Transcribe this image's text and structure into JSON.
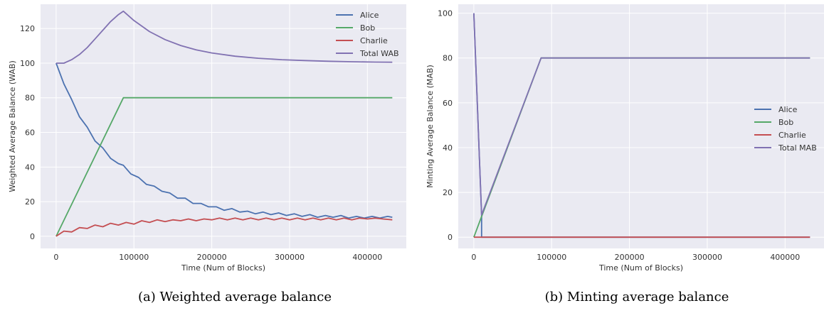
{
  "chart_data": [
    {
      "type": "line",
      "caption": "(a) Weighted average balance",
      "xlabel": "Time (Num of Blocks)",
      "ylabel": "Weighted Average Balance (WAB)",
      "xlim": [
        -20000,
        450000
      ],
      "ylim": [
        -7,
        134
      ],
      "xticks": [
        0,
        100000,
        200000,
        300000,
        400000
      ],
      "xtick_labels": [
        "0",
        "100000",
        "200000",
        "300000",
        "400000"
      ],
      "yticks": [
        0,
        20,
        40,
        60,
        80,
        100,
        120
      ],
      "ytick_labels": [
        "0",
        "20",
        "40",
        "60",
        "80",
        "100",
        "120"
      ],
      "grid": true,
      "legend": "top-right",
      "series": [
        {
          "name": "Alice",
          "color": "#4c72b0",
          "x": [
            0,
            10000,
            20000,
            30000,
            40000,
            50000,
            60000,
            70000,
            80000,
            86400,
            96000,
            106000,
            116000,
            126000,
            136000,
            146000,
            156000,
            166000,
            176000,
            186000,
            196000,
            206000,
            216000,
            226000,
            236000,
            246000,
            256000,
            266000,
            276000,
            286000,
            296000,
            306000,
            316000,
            326000,
            336000,
            346000,
            356000,
            366000,
            376000,
            386000,
            396000,
            406000,
            416000,
            426000,
            432000
          ],
          "y": [
            100,
            88,
            79,
            69,
            63,
            55,
            51,
            45,
            42,
            41,
            36,
            34,
            30,
            29,
            26,
            25,
            22,
            22,
            19,
            19,
            17,
            17,
            15,
            16,
            14,
            14.5,
            13,
            14,
            12.5,
            13.5,
            12,
            13,
            11.5,
            12.5,
            11,
            12,
            11,
            12,
            10.5,
            11.5,
            10.5,
            11.5,
            10.5,
            11.5,
            11
          ]
        },
        {
          "name": "Bob",
          "color": "#55a868",
          "x": [
            0,
            86400,
            432000
          ],
          "y": [
            0,
            80,
            80
          ]
        },
        {
          "name": "Charlie",
          "color": "#c44e52",
          "x": [
            0,
            10000,
            20000,
            30000,
            40000,
            50000,
            60000,
            70000,
            80000,
            90000,
            100000,
            110000,
            120000,
            130000,
            140000,
            150000,
            160000,
            170000,
            180000,
            190000,
            200000,
            210000,
            220000,
            230000,
            240000,
            250000,
            260000,
            270000,
            280000,
            290000,
            300000,
            310000,
            320000,
            330000,
            340000,
            350000,
            360000,
            370000,
            380000,
            390000,
            400000,
            410000,
            420000,
            432000
          ],
          "y": [
            0,
            3,
            2.5,
            5,
            4.5,
            6.5,
            5.5,
            7.5,
            6.5,
            8,
            7,
            9,
            8,
            9.5,
            8.5,
            9.5,
            9,
            10,
            9,
            10,
            9.5,
            10.5,
            9.5,
            10.5,
            9.5,
            10.5,
            9.5,
            10.5,
            9.5,
            10.5,
            9.5,
            10.5,
            9.5,
            10.5,
            9.5,
            10.5,
            9.5,
            10.5,
            9.5,
            10.5,
            10,
            10.5,
            10,
            9.5
          ]
        },
        {
          "name": "Total WAB",
          "color": "#8172b2",
          "x": [
            0,
            10000,
            20000,
            30000,
            40000,
            50000,
            60000,
            70000,
            80000,
            86400,
            100000,
            120000,
            140000,
            160000,
            180000,
            200000,
            230000,
            260000,
            290000,
            320000,
            350000,
            380000,
            410000,
            432000
          ],
          "y": [
            100,
            100,
            102,
            105,
            109,
            114,
            119,
            124,
            128,
            130,
            124.6,
            118.2,
            113.6,
            110.2,
            107.7,
            105.9,
            104.0,
            102.8,
            102.0,
            101.5,
            101.1,
            100.8,
            100.6,
            100.5
          ]
        }
      ]
    },
    {
      "type": "line",
      "caption": "(b) Minting average balance",
      "xlabel": "Time (Num of Blocks)",
      "ylabel": "Minting Average Balance (MAB)",
      "xlim": [
        -20000,
        450000
      ],
      "ylim": [
        -5,
        104
      ],
      "xticks": [
        0,
        100000,
        200000,
        300000,
        400000
      ],
      "xtick_labels": [
        "0",
        "100000",
        "200000",
        "300000",
        "400000"
      ],
      "yticks": [
        0,
        20,
        40,
        60,
        80,
        100
      ],
      "ytick_labels": [
        "0",
        "20",
        "40",
        "60",
        "80",
        "100"
      ],
      "grid": true,
      "legend": "center-right",
      "series": [
        {
          "name": "Alice",
          "color": "#4c72b0",
          "x": [
            0,
            10000,
            10001,
            432000
          ],
          "y": [
            100,
            10,
            0,
            0
          ]
        },
        {
          "name": "Bob",
          "color": "#55a868",
          "x": [
            0,
            86400,
            432000
          ],
          "y": [
            0,
            80,
            80
          ]
        },
        {
          "name": "Charlie",
          "color": "#c44e52",
          "x": [
            0,
            432000
          ],
          "y": [
            0,
            0
          ]
        },
        {
          "name": "Total MAB",
          "color": "#8172b2",
          "x": [
            0,
            10000,
            86400,
            432000
          ],
          "y": [
            100,
            10,
            80,
            80
          ]
        }
      ]
    }
  ]
}
